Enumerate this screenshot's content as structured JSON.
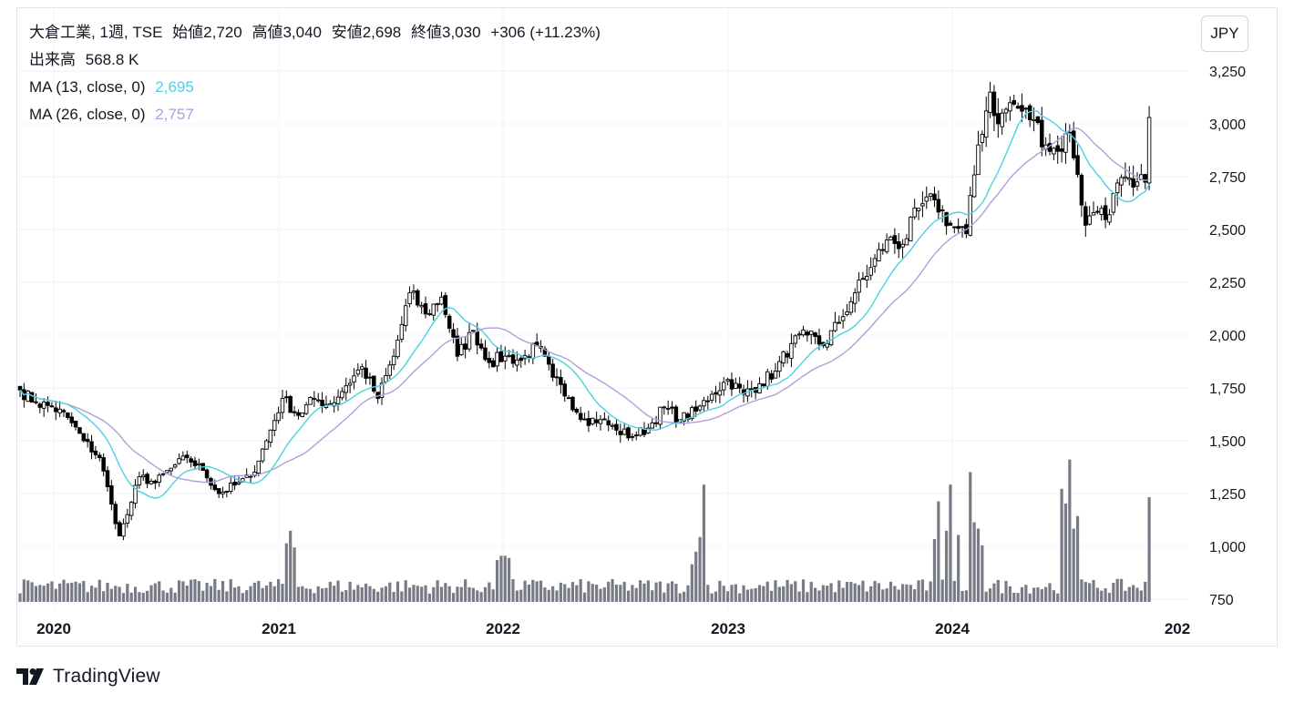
{
  "legend": {
    "symbol": "大倉工業, 1週, TSE",
    "open_label": "始値",
    "open": "2,720",
    "high_label": "高値",
    "high": "3,040",
    "low_label": "安値",
    "low": "2,698",
    "close_label": "終値",
    "close": "3,030",
    "change": "+306 (+11.23%)",
    "volume_label": "出来高",
    "volume": "568.8 K",
    "ma1_label": "MA (13, close, 0)",
    "ma1_value": "2,695",
    "ma2_label": "MA (26, close, 0)",
    "ma2_value": "2,757"
  },
  "currency": "JPY",
  "brand": "TradingView",
  "colors": {
    "ma13": "#4dd0e1",
    "ma26": "#b39ddb",
    "volume": "#787b86",
    "candle": "#000000",
    "grid": "#f0f3fa"
  },
  "icons": [
    "tradingview-logo-icon"
  ],
  "chart_data": {
    "type": "candlestick",
    "y_ticks": [
      "750",
      "1,000",
      "1,250",
      "1,500",
      "1,750",
      "2,000",
      "2,250",
      "2,500",
      "2,750",
      "3,000",
      "3,250"
    ],
    "x_ticks": [
      "2020",
      "2021",
      "2022",
      "2023",
      "2024",
      "202"
    ],
    "ylim": [
      750,
      3300
    ],
    "grid": true,
    "anchors": [
      {
        "i": 0,
        "p": 1740
      },
      {
        "i": 4,
        "p": 1680
      },
      {
        "i": 8,
        "p": 1660
      },
      {
        "i": 12,
        "p": 1610
      },
      {
        "i": 16,
        "p": 1500
      },
      {
        "i": 20,
        "p": 1420
      },
      {
        "i": 23,
        "p": 1200
      },
      {
        "i": 25,
        "p": 1050
      },
      {
        "i": 27,
        "p": 1150
      },
      {
        "i": 30,
        "p": 1330
      },
      {
        "i": 34,
        "p": 1300
      },
      {
        "i": 38,
        "p": 1370
      },
      {
        "i": 42,
        "p": 1420
      },
      {
        "i": 46,
        "p": 1360
      },
      {
        "i": 50,
        "p": 1250
      },
      {
        "i": 54,
        "p": 1290
      },
      {
        "i": 58,
        "p": 1330
      },
      {
        "i": 62,
        "p": 1500
      },
      {
        "i": 66,
        "p": 1700
      },
      {
        "i": 70,
        "p": 1620
      },
      {
        "i": 74,
        "p": 1700
      },
      {
        "i": 78,
        "p": 1670
      },
      {
        "i": 82,
        "p": 1760
      },
      {
        "i": 86,
        "p": 1850
      },
      {
        "i": 90,
        "p": 1700
      },
      {
        "i": 94,
        "p": 1900
      },
      {
        "i": 98,
        "p": 2200
      },
      {
        "i": 102,
        "p": 2100
      },
      {
        "i": 106,
        "p": 2180
      },
      {
        "i": 110,
        "p": 1900
      },
      {
        "i": 114,
        "p": 2020
      },
      {
        "i": 118,
        "p": 1870
      },
      {
        "i": 122,
        "p": 1900
      },
      {
        "i": 126,
        "p": 1880
      },
      {
        "i": 130,
        "p": 1950
      },
      {
        "i": 134,
        "p": 1800
      },
      {
        "i": 138,
        "p": 1700
      },
      {
        "i": 142,
        "p": 1600
      },
      {
        "i": 146,
        "p": 1600
      },
      {
        "i": 150,
        "p": 1550
      },
      {
        "i": 154,
        "p": 1520
      },
      {
        "i": 158,
        "p": 1560
      },
      {
        "i": 162,
        "p": 1660
      },
      {
        "i": 166,
        "p": 1600
      },
      {
        "i": 170,
        "p": 1640
      },
      {
        "i": 174,
        "p": 1720
      },
      {
        "i": 178,
        "p": 1790
      },
      {
        "i": 182,
        "p": 1720
      },
      {
        "i": 186,
        "p": 1770
      },
      {
        "i": 190,
        "p": 1830
      },
      {
        "i": 194,
        "p": 1960
      },
      {
        "i": 198,
        "p": 2000
      },
      {
        "i": 202,
        "p": 1950
      },
      {
        "i": 206,
        "p": 2060
      },
      {
        "i": 210,
        "p": 2200
      },
      {
        "i": 214,
        "p": 2320
      },
      {
        "i": 218,
        "p": 2450
      },
      {
        "i": 222,
        "p": 2430
      },
      {
        "i": 226,
        "p": 2600
      },
      {
        "i": 230,
        "p": 2640
      },
      {
        "i": 234,
        "p": 2520
      },
      {
        "i": 238,
        "p": 2480
      },
      {
        "i": 241,
        "p": 2900
      },
      {
        "i": 244,
        "p": 3150
      },
      {
        "i": 246,
        "p": 3000
      },
      {
        "i": 249,
        "p": 3100
      },
      {
        "i": 252,
        "p": 3060
      },
      {
        "i": 255,
        "p": 3020
      },
      {
        "i": 258,
        "p": 2900
      },
      {
        "i": 261,
        "p": 2870
      },
      {
        "i": 264,
        "p": 2960
      },
      {
        "i": 266,
        "p": 2760
      },
      {
        "i": 268,
        "p": 2520
      },
      {
        "i": 270,
        "p": 2580
      },
      {
        "i": 272,
        "p": 2600
      },
      {
        "i": 274,
        "p": 2570
      },
      {
        "i": 276,
        "p": 2720
      },
      {
        "i": 280,
        "p": 2700
      },
      {
        "i": 283,
        "p": 2724
      },
      {
        "i": 284,
        "p": 3030
      }
    ],
    "volume_spikes": [
      {
        "i": 67,
        "v": 280
      },
      {
        "i": 68,
        "v": 340
      },
      {
        "i": 69,
        "v": 260
      },
      {
        "i": 120,
        "v": 200
      },
      {
        "i": 121,
        "v": 220
      },
      {
        "i": 122,
        "v": 220
      },
      {
        "i": 123,
        "v": 210
      },
      {
        "i": 169,
        "v": 180
      },
      {
        "i": 170,
        "v": 240
      },
      {
        "i": 171,
        "v": 310
      },
      {
        "i": 172,
        "v": 560
      },
      {
        "i": 230,
        "v": 300
      },
      {
        "i": 231,
        "v": 480
      },
      {
        "i": 233,
        "v": 340
      },
      {
        "i": 234,
        "v": 560
      },
      {
        "i": 236,
        "v": 320
      },
      {
        "i": 239,
        "v": 620
      },
      {
        "i": 240,
        "v": 380
      },
      {
        "i": 241,
        "v": 350
      },
      {
        "i": 242,
        "v": 270
      },
      {
        "i": 262,
        "v": 540
      },
      {
        "i": 263,
        "v": 470
      },
      {
        "i": 264,
        "v": 680
      },
      {
        "i": 265,
        "v": 350
      },
      {
        "i": 266,
        "v": 410
      },
      {
        "i": 284,
        "v": 500
      }
    ]
  }
}
